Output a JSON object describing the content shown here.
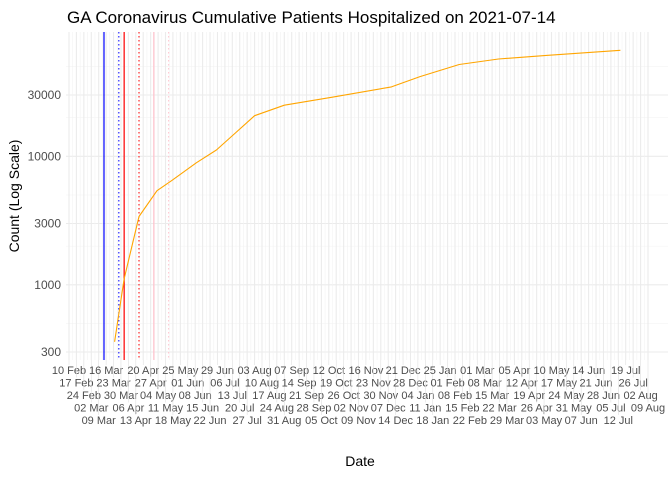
{
  "chart_data": {
    "type": "line",
    "title": "GA Coronavirus Cumulative Patients Hospitalized on 2021-07-14",
    "xlabel": "Date",
    "ylabel": "Count (Log Scale)",
    "y_scale": "log",
    "ylim": [
      260,
      87000
    ],
    "xlim": [
      "2020-02-10",
      "2021-08-09"
    ],
    "y_ticks": [
      300,
      1000,
      3000,
      10000,
      30000
    ],
    "y_tick_labels": [
      "300",
      "1000",
      "3000",
      "10000",
      "30000"
    ],
    "x_tick_labels": [
      "10 Feb",
      "17 Feb",
      "24 Feb",
      "02 Mar",
      "09 Mar",
      "16 Mar",
      "23 Mar",
      "30 Mar",
      "06 Apr",
      "13 Apr",
      "20 Apr",
      "27 Apr",
      "04 May",
      "11 May",
      "18 May",
      "25 May",
      "01 Jun",
      "08 Jun",
      "15 Jun",
      "22 Jun",
      "29 Jun",
      "06 Jul",
      "13 Jul",
      "20 Jul",
      "27 Jul",
      "03 Aug",
      "10 Aug",
      "17 Aug",
      "24 Aug",
      "31 Aug",
      "07 Sep",
      "14 Sep",
      "21 Sep",
      "28 Sep",
      "05 Oct",
      "12 Oct",
      "19 Oct",
      "26 Oct",
      "02 Nov",
      "09 Nov",
      "16 Nov",
      "23 Nov",
      "30 Nov",
      "07 Dec",
      "14 Dec",
      "21 Dec",
      "28 Dec",
      "04 Jan",
      "11 Jan",
      "18 Jan",
      "25 Jan",
      "01 Feb",
      "08 Feb",
      "15 Feb",
      "22 Feb",
      "01 Mar",
      "08 Mar",
      "15 Mar",
      "22 Mar",
      "29 Mar",
      "05 Apr",
      "12 Apr",
      "19 Apr",
      "26 Apr",
      "03 May",
      "10 May",
      "17 May",
      "24 May",
      "31 May",
      "07 Jun",
      "14 Jun",
      "21 Jun",
      "28 Jun",
      "05 Jul",
      "12 Jul",
      "19 Jul",
      "26 Jul",
      "02 Aug",
      "09 Aug"
    ],
    "grid": true,
    "series": [
      {
        "color": "#FFA500",
        "points": [
          [
            "2020-03-24",
            360
          ],
          [
            "2020-04-02",
            1110
          ],
          [
            "2020-04-16",
            3400
          ],
          [
            "2020-05-03",
            5400
          ],
          [
            "2020-05-17",
            6500
          ],
          [
            "2020-06-09",
            8900
          ],
          [
            "2020-06-28",
            11200
          ],
          [
            "2020-07-16",
            15200
          ],
          [
            "2020-08-03",
            20700
          ],
          [
            "2020-08-31",
            25000
          ],
          [
            "2020-10-16",
            28900
          ],
          [
            "2020-12-10",
            34700
          ],
          [
            "2021-01-06",
            41700
          ],
          [
            "2021-02-12",
            51800
          ],
          [
            "2021-03-21",
            57200
          ],
          [
            "2021-05-05",
            61000
          ],
          [
            "2021-07-14",
            66800
          ]
        ]
      }
    ],
    "vertical_lines": [
      {
        "date": "2020-03-14",
        "color": "#0000FF",
        "style": "solid"
      },
      {
        "date": "2020-03-28",
        "color": "#0000FF",
        "style": "dotted"
      },
      {
        "date": "2020-04-02",
        "color": "#FF0000",
        "style": "solid"
      },
      {
        "date": "2020-04-16",
        "color": "#FF0000",
        "style": "dotted"
      },
      {
        "date": "2020-04-30",
        "color": "#FFC0CB",
        "style": "solid"
      },
      {
        "date": "2020-05-14",
        "color": "#FFC0CB",
        "style": "dotted"
      }
    ]
  }
}
